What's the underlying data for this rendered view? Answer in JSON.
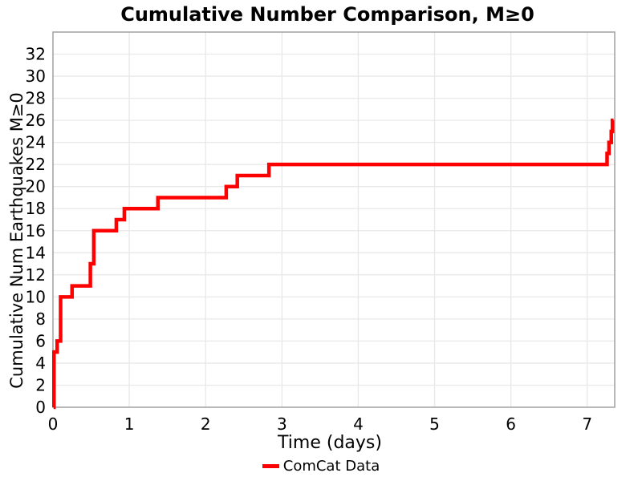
{
  "chart_data": {
    "type": "line",
    "subtype": "step-post",
    "title": "Cumulative Number Comparison, M≥0",
    "xlabel": "Time (days)",
    "ylabel": "Cumulative Num Earthquakes M≥0",
    "xlim": [
      0,
      7.36
    ],
    "ylim": [
      0,
      34
    ],
    "xticks": [
      0,
      1,
      2,
      3,
      4,
      5,
      6,
      7
    ],
    "yticks": [
      0,
      2,
      4,
      6,
      8,
      10,
      12,
      14,
      16,
      18,
      20,
      22,
      24,
      26,
      28,
      30,
      32
    ],
    "grid": true,
    "legend": {
      "position": "bottom-center",
      "entries": [
        {
          "label": "ComCat Data",
          "color": "#ff0000"
        }
      ]
    },
    "colors": {
      "line": "#ff0000",
      "grid": "#e8e8e8",
      "spine": "#a6a6a6",
      "text": "#000000"
    },
    "series": [
      {
        "name": "ComCat Data",
        "color": "#ff0000",
        "line_width": 4.5,
        "step": "post",
        "points": [
          [
            0.008,
            0
          ],
          [
            0.013,
            5
          ],
          [
            0.055,
            6
          ],
          [
            0.1,
            10
          ],
          [
            0.25,
            11
          ],
          [
            0.49,
            13
          ],
          [
            0.535,
            16
          ],
          [
            0.83,
            17
          ],
          [
            0.935,
            18
          ],
          [
            1.375,
            19
          ],
          [
            2.27,
            20
          ],
          [
            2.415,
            21
          ],
          [
            2.83,
            22
          ],
          [
            7.26,
            23
          ],
          [
            7.285,
            24
          ],
          [
            7.315,
            25
          ],
          [
            7.33,
            26
          ]
        ],
        "t_end": 7.345,
        "final_value": 26
      }
    ]
  }
}
